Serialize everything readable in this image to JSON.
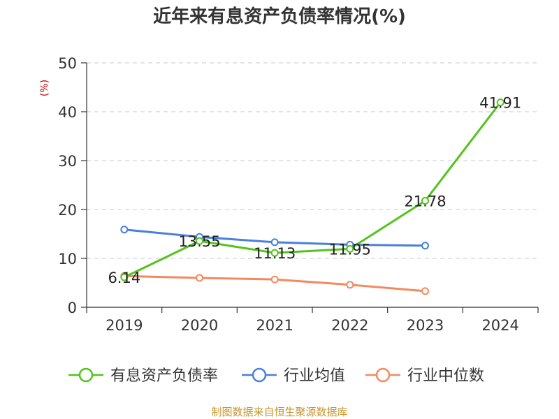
{
  "chart_data": {
    "type": "line",
    "title": "近年来有息资产负债率情况(%)",
    "ylabel": "(%)",
    "xlabel": "",
    "categories": [
      "2019",
      "2020",
      "2021",
      "2022",
      "2023",
      "2024"
    ],
    "ylim": [
      0,
      50
    ],
    "yticks": [
      0,
      10,
      20,
      30,
      40,
      50
    ],
    "grid": true,
    "legend_position": "bottom",
    "series": [
      {
        "name": "有息资产负债率",
        "color": "#52c41a",
        "values": [
          6.14,
          13.55,
          11.13,
          11.95,
          21.78,
          41.91
        ],
        "labels": [
          "6.14",
          "13.55",
          "11.13",
          "11.95",
          "21.78",
          "41.91"
        ]
      },
      {
        "name": "行业均值",
        "color": "#4a7fdc",
        "values": [
          15.9,
          14.4,
          13.3,
          12.8,
          12.6,
          null
        ]
      },
      {
        "name": "行业中位数",
        "color": "#f4895f",
        "values": [
          6.4,
          6.0,
          5.7,
          4.6,
          3.3,
          null
        ]
      }
    ],
    "source": "制图数据来自恒生聚源数据库"
  }
}
